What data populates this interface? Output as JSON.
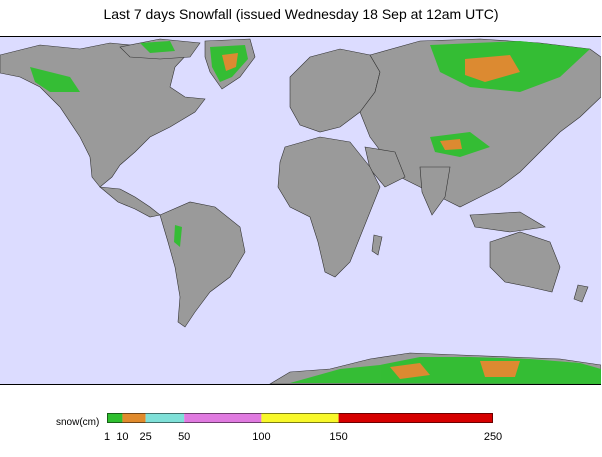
{
  "title": "Last 7 days Snowfall (issued Wednesday 18 Sep at 12am UTC)",
  "map": {
    "ocean_color": "#dcdcff",
    "land_color": "#9a9a9a",
    "snow_regions": [
      "Greenland",
      "Alaska",
      "Siberia",
      "Tibetan Plateau",
      "Canadian Arctic",
      "Andes",
      "Antarctica"
    ]
  },
  "legend": {
    "label": "snow(cm)",
    "segments": [
      {
        "from": 1,
        "to": 10,
        "color": "#2fbf2f"
      },
      {
        "from": 10,
        "to": 25,
        "color": "#e08a2c"
      },
      {
        "from": 25,
        "to": 50,
        "color": "#7fe0d8"
      },
      {
        "from": 50,
        "to": 100,
        "color": "#e07ae0"
      },
      {
        "from": 100,
        "to": 150,
        "color": "#f8f82a"
      },
      {
        "from": 150,
        "to": 250,
        "color": "#d60000"
      }
    ],
    "ticks": [
      "1",
      "10",
      "25",
      "50",
      "100",
      "150",
      "250"
    ]
  }
}
